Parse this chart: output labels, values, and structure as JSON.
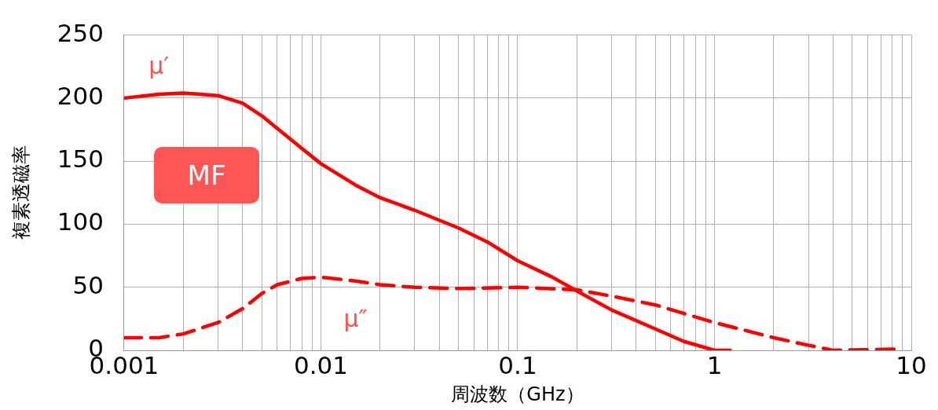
{
  "chart_data": {
    "type": "line",
    "xlabel": "周波数（GHz）",
    "ylabel": "複素透磁率",
    "log": "x",
    "grid": true,
    "legend": false,
    "marker": "none",
    "annotations": [
      "MF"
    ],
    "xlim": [
      0.001,
      10
    ],
    "xticks": [
      0.001,
      {
        "value": 0.002,
        "label": null
      },
      {
        "value": 0.003,
        "label": null
      },
      {
        "value": 0.004,
        "label": null
      },
      {
        "value": 0.005,
        "label": null
      },
      {
        "value": 0.006,
        "label": null
      },
      {
        "value": 0.007,
        "label": null
      },
      {
        "value": 0.008,
        "label": null
      },
      {
        "value": 0.009,
        "label": null
      },
      0.01,
      {
        "value": 0.02,
        "label": null
      },
      {
        "value": 0.03,
        "label": null
      },
      {
        "value": 0.04,
        "label": null
      },
      {
        "value": 0.05,
        "label": null
      },
      {
        "value": 0.06,
        "label": null
      },
      {
        "value": 0.07,
        "label": null
      },
      {
        "value": 0.08,
        "label": null
      },
      {
        "value": 0.09,
        "label": null
      },
      0.1,
      {
        "value": 0.2,
        "label": null
      },
      {
        "value": 0.3,
        "label": null
      },
      {
        "value": 0.4,
        "label": null
      },
      {
        "value": 0.5,
        "label": null
      },
      {
        "value": 0.6,
        "label": null
      },
      {
        "value": 0.7,
        "label": null
      },
      {
        "value": 0.8,
        "label": null
      },
      {
        "value": 0.9,
        "label": null
      },
      1,
      {
        "value": 2,
        "label": null
      },
      {
        "value": 3,
        "label": null
      },
      {
        "value": 4,
        "label": null
      },
      {
        "value": 5,
        "label": null
      },
      {
        "value": 6,
        "label": null
      },
      {
        "value": 7,
        "label": null
      },
      {
        "value": 8,
        "label": null
      },
      {
        "value": 9,
        "label": null
      },
      10
    ],
    "ylim": [
      0,
      250
    ],
    "yticks": [
      0,
      50,
      100,
      150,
      200,
      250
    ],
    "series": [
      {
        "name": "μ′",
        "color": "#ff0000",
        "line_style": "solid",
        "x": [
          0.001,
          0.0015,
          0.002,
          0.003,
          0.004,
          0.005,
          0.006,
          0.008,
          0.01,
          0.015,
          0.02,
          0.03,
          0.05,
          0.07,
          0.1,
          0.15,
          0.2,
          0.3,
          0.5,
          0.7,
          1,
          1.2
        ],
        "values": [
          200,
          203,
          204,
          202,
          196,
          186,
          176,
          160,
          148,
          131,
          121,
          111,
          97,
          86,
          71,
          58,
          47,
          32,
          17,
          7,
          0,
          0
        ]
      },
      {
        "name": "μ″",
        "color": "#ff0000",
        "line_style": "dashed",
        "x": [
          0.001,
          0.0015,
          0.002,
          0.003,
          0.004,
          0.005,
          0.006,
          0.008,
          0.01,
          0.015,
          0.02,
          0.03,
          0.05,
          0.1,
          0.2,
          0.3,
          0.5,
          1,
          1.5,
          2,
          3,
          4,
          6,
          8.5
        ],
        "values": [
          10,
          10,
          13,
          22,
          33,
          45,
          52,
          57,
          58,
          55,
          52,
          50,
          49,
          50,
          48,
          43,
          36,
          22,
          15,
          10,
          4,
          0,
          0.5,
          1
        ]
      }
    ]
  }
}
